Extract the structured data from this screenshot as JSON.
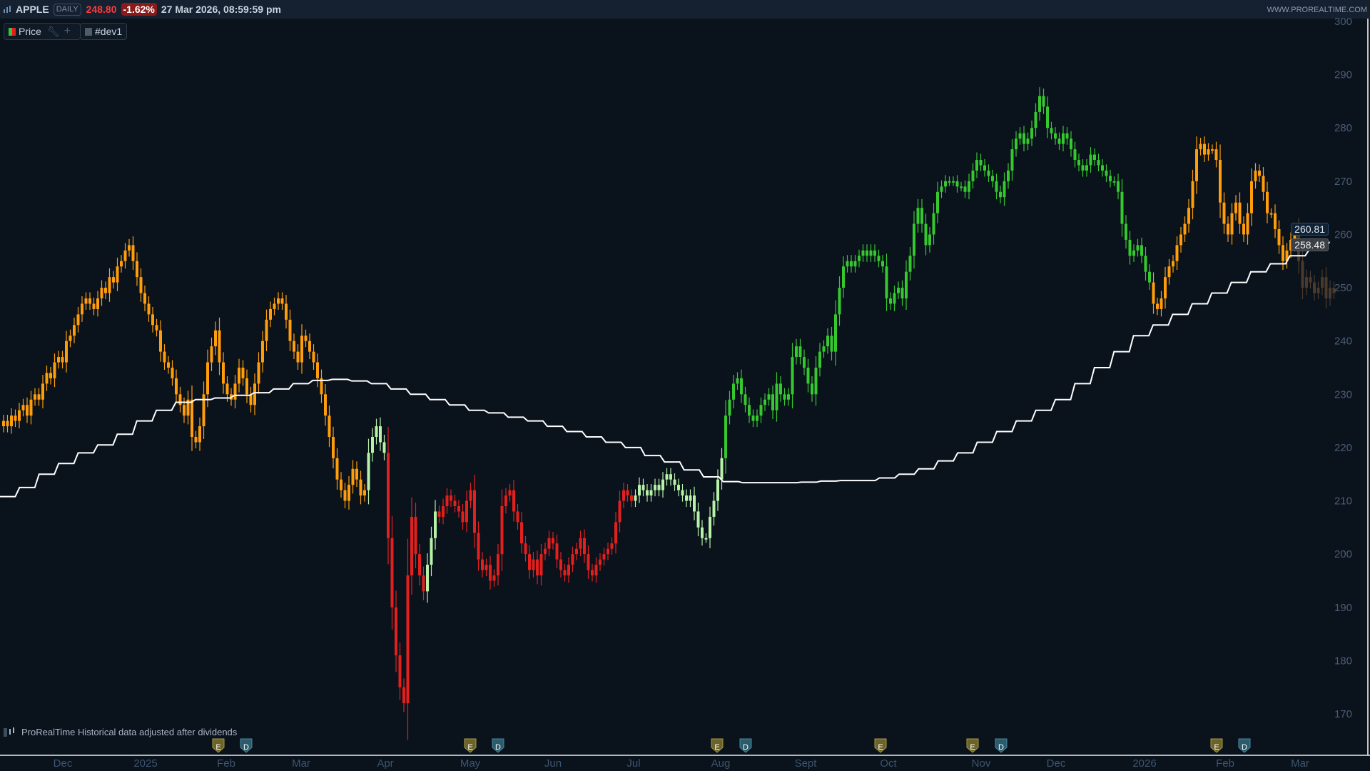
{
  "header": {
    "symbol": "APPLE",
    "timeframe": "DAILY",
    "last_price": "248.80",
    "change": "-1.62%",
    "datetime": "27 Mar 2026, 08:59:59 pm",
    "site": "WWW.PROREALTIME.COM",
    "icon": "candlestick-icon"
  },
  "legend": [
    {
      "label": "Price",
      "icons": [
        "wrench-icon",
        "plus-icon"
      ]
    },
    {
      "label": "#dev1"
    }
  ],
  "footnote": "ProRealTime Historical data adjusted after dividends",
  "price_labels": {
    "price": "260.81",
    "dev1": "258.48"
  },
  "chart_data": {
    "type": "candlestick",
    "title": "",
    "ylim": [
      168,
      301
    ],
    "yticks": [
      300,
      290,
      280,
      270,
      260,
      250,
      240,
      230,
      220,
      210,
      200,
      190,
      180,
      170
    ],
    "xticks": [
      "Dec",
      "2025",
      "Feb",
      "Mar",
      "Apr",
      "May",
      "Jun",
      "Jul",
      "Aug",
      "Sept",
      "Oct",
      "Nov",
      "Dec",
      "2026",
      "Feb",
      "Mar"
    ],
    "grid": false,
    "colors": {
      "orange": "#ff9d0a",
      "lightgreen": "#b8f2a8",
      "red": "#e3201e",
      "green": "#35c82f",
      "faded": "#4a3a2c",
      "dev1": "#ffffff"
    },
    "candle_groups": [
      {
        "color": "orange",
        "closes": [
          225,
          224,
          226,
          225,
          227,
          228,
          226,
          229,
          230,
          229,
          232,
          234,
          233,
          236,
          237,
          236,
          240,
          241,
          243,
          245,
          247,
          248,
          247,
          246,
          248,
          250,
          249,
          252,
          251,
          254,
          255,
          257,
          258,
          255,
          252,
          249,
          247,
          245,
          243,
          242,
          238,
          236,
          235,
          233,
          230,
          228,
          226,
          229,
          222,
          221,
          224,
          230,
          236,
          239,
          242,
          236,
          232,
          230,
          229,
          232,
          235,
          233,
          230,
          228,
          232,
          236,
          240,
          244,
          246,
          247,
          248,
          247,
          244,
          240,
          238,
          236,
          241,
          240,
          238,
          236,
          233,
          230,
          226,
          222,
          218,
          214,
          212,
          210,
          213,
          216,
          214,
          211,
          212
        ]
      },
      {
        "color": "lightgreen",
        "closes": [
          219,
          222,
          224,
          221,
          219
        ]
      },
      {
        "color": "red",
        "closes": [
          203,
          190,
          181,
          175,
          172,
          196,
          207,
          200,
          196,
          193
        ]
      },
      {
        "color": "lightgreen",
        "closes": [
          198,
          203,
          208
        ]
      },
      {
        "color": "red",
        "closes": [
          207,
          209,
          211,
          210,
          209,
          208,
          206,
          210,
          212,
          204,
          199,
          197,
          198,
          195,
          196,
          200,
          209,
          211,
          212,
          208,
          206,
          202,
          200,
          197,
          199,
          196,
          200,
          201,
          203,
          202,
          199,
          197,
          196,
          198,
          200,
          201,
          203,
          200,
          197,
          196,
          198,
          199,
          200,
          201,
          202,
          206,
          210,
          212,
          211,
          210
        ]
      },
      {
        "color": "lightgreen",
        "closes": [
          211,
          213,
          212,
          211,
          212,
          213,
          212,
          214,
          215,
          214,
          213,
          212,
          211,
          210,
          211,
          208,
          205,
          203,
          203,
          207,
          210,
          214,
          218
        ]
      },
      {
        "color": "green",
        "closes": [
          226,
          229,
          232,
          233,
          230,
          228,
          226,
          225,
          226,
          228,
          229,
          230,
          227,
          232,
          230,
          229,
          230,
          237,
          239,
          237,
          235,
          232,
          230,
          235,
          238,
          239,
          241,
          238,
          245,
          250,
          254,
          255,
          254,
          255,
          256,
          257,
          256,
          257,
          256,
          255,
          254,
          248,
          247,
          249,
          250,
          248,
          253,
          256,
          262,
          265,
          262,
          258,
          260,
          264,
          268,
          269,
          270,
          270,
          270,
          269,
          269,
          268,
          270,
          272,
          274,
          273,
          272,
          271,
          270,
          268,
          267,
          270,
          272,
          276,
          278,
          279,
          277,
          278,
          280,
          283,
          286,
          284,
          280,
          279,
          278,
          277,
          279,
          278,
          276,
          274,
          273,
          272,
          273,
          275,
          274,
          273,
          272,
          271,
          270,
          270,
          268,
          262,
          259,
          256,
          257,
          258,
          256,
          253,
          251
        ]
      },
      {
        "color": "orange",
        "closes": [
          247,
          246,
          248,
          252,
          254,
          255,
          258,
          260,
          262,
          265,
          270,
          276,
          277,
          275,
          276,
          276,
          274,
          266,
          262,
          260,
          264,
          266,
          262,
          260,
          264,
          270,
          272,
          271,
          268,
          264,
          264,
          261,
          258,
          255,
          257,
          259,
          260.81
        ]
      },
      {
        "color": "faded",
        "closes": [
          255,
          250,
          252,
          251,
          249,
          250,
          252,
          248,
          250,
          249
        ]
      }
    ],
    "dev1": {
      "name": "#dev1",
      "style": "step",
      "weekly_values": [
        210.8,
        212.5,
        215,
        217,
        219,
        220.5,
        222.5,
        225,
        227,
        228.5,
        229,
        229.3,
        229.8,
        230.3,
        231,
        232,
        232.6,
        232.8,
        232.5,
        232,
        231,
        230,
        229,
        228,
        227,
        226.5,
        225.7,
        225,
        224,
        223,
        222,
        221,
        220,
        218.5,
        217.3,
        215.8,
        214.5,
        213.6,
        213.4,
        213.4,
        213.4,
        213.5,
        213.7,
        213.8,
        213.8,
        214.3,
        215,
        216,
        217.5,
        219,
        221,
        223,
        225,
        227,
        229,
        232,
        235,
        238,
        241,
        243,
        245,
        247,
        249,
        251,
        253,
        254.5,
        256,
        257.2,
        258.48
      ]
    },
    "events": [
      "E",
      "D",
      "E",
      "D",
      "E",
      "D",
      "E",
      "E",
      "D",
      "E",
      "D"
    ]
  }
}
